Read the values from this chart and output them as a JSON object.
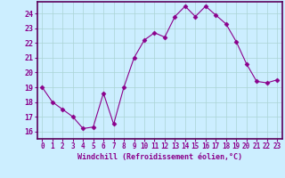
{
  "x": [
    0,
    1,
    2,
    3,
    4,
    5,
    6,
    7,
    8,
    9,
    10,
    11,
    12,
    13,
    14,
    15,
    16,
    17,
    18,
    19,
    20,
    21,
    22,
    23
  ],
  "y": [
    19,
    18,
    17.5,
    17,
    16.2,
    16.3,
    18.6,
    16.5,
    19,
    21,
    22.2,
    22.7,
    22.4,
    23.8,
    24.5,
    23.8,
    24.5,
    23.9,
    23.3,
    22.1,
    20.6,
    19.4,
    19.3,
    19.5
  ],
  "line_color": "#8B008B",
  "marker": "D",
  "marker_size": 2.5,
  "background_color": "#cceeff",
  "grid_color": "#aad4d4",
  "xlabel": "Windchill (Refroidissement éolien,°C)",
  "xlim": [
    -0.5,
    23.5
  ],
  "ylim": [
    15.5,
    24.8
  ],
  "yticks": [
    16,
    17,
    18,
    19,
    20,
    21,
    22,
    23,
    24
  ],
  "xticks": [
    0,
    1,
    2,
    3,
    4,
    5,
    6,
    7,
    8,
    9,
    10,
    11,
    12,
    13,
    14,
    15,
    16,
    17,
    18,
    19,
    20,
    21,
    22,
    23
  ],
  "tick_color": "#8B008B",
  "label_color": "#8B008B",
  "axis_color": "#5B005B",
  "font_family": "monospace"
}
